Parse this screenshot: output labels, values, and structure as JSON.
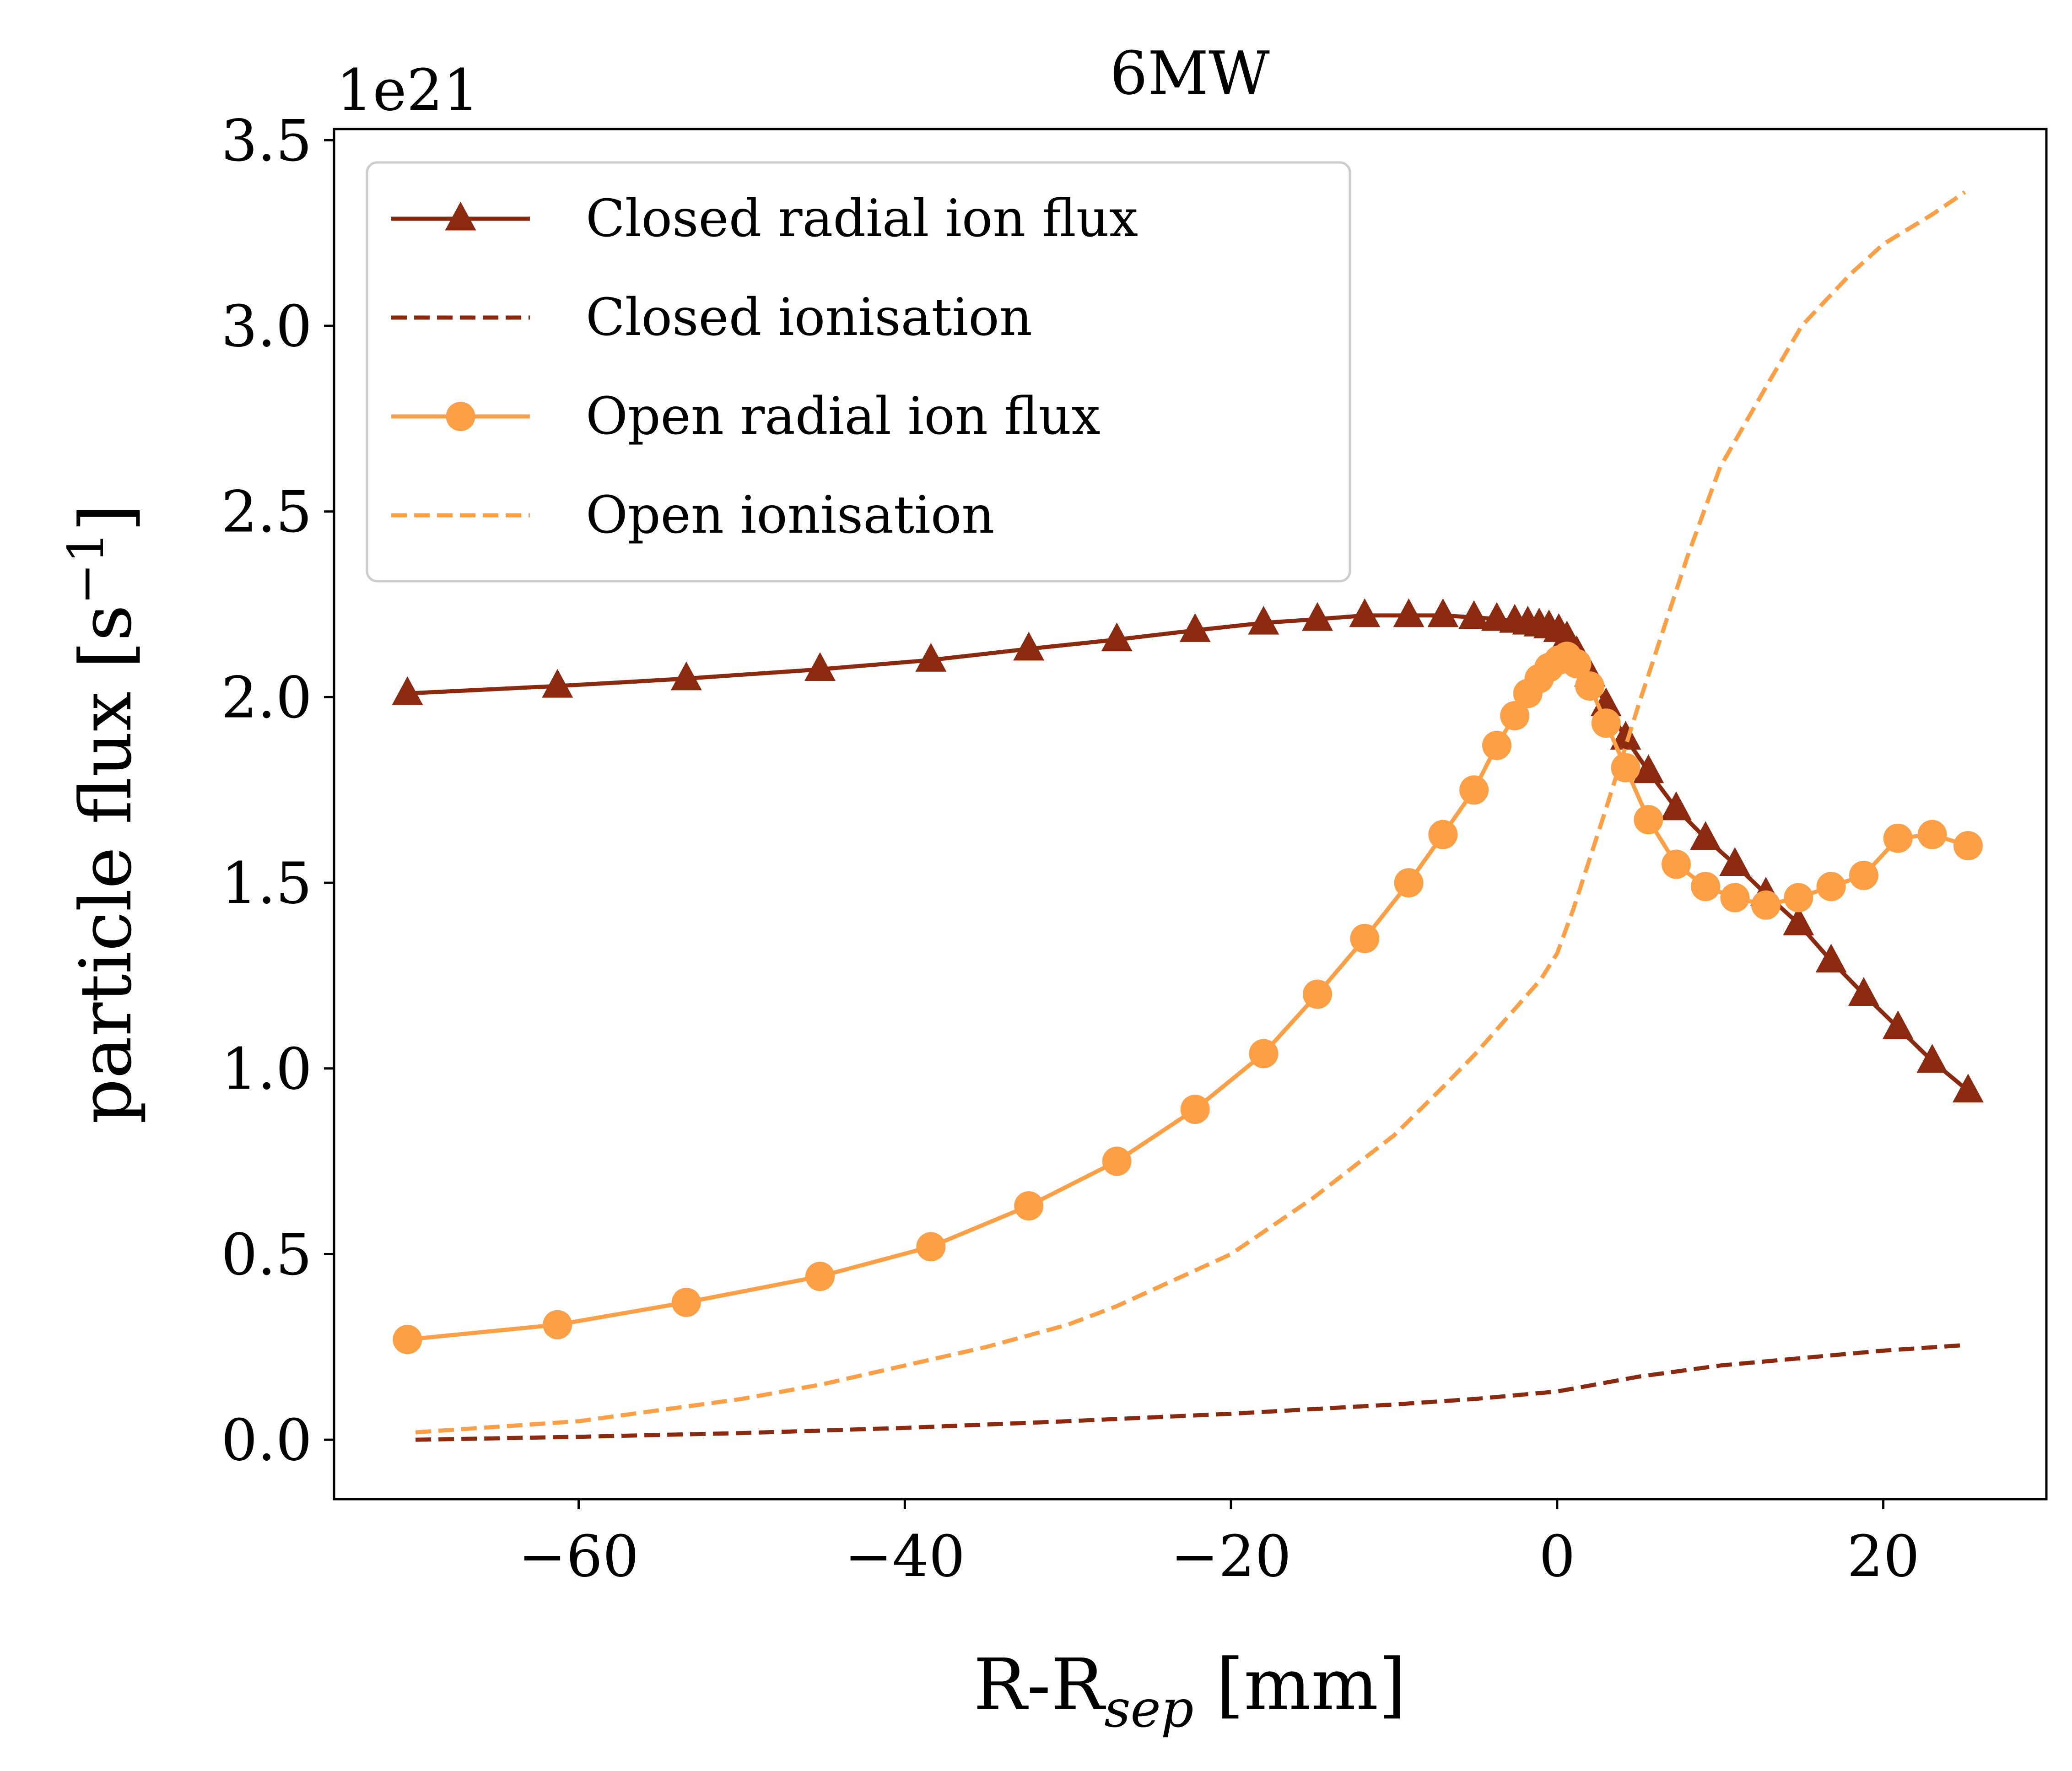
{
  "chart_data": {
    "type": "line",
    "title": "6MW",
    "xlabel": "R-R",
    "xlabel_sub": "sep",
    "xlabel_unit": " [mm]",
    "ylabel": "particle flux [s",
    "ylabel_sup": "−1",
    "ylabel_close": "]",
    "y_offset_label": "1e21",
    "xlim": [
      -75,
      30
    ],
    "ylim": [
      -0.16,
      3.53
    ],
    "xticks": [
      -60,
      -40,
      -20,
      0,
      20
    ],
    "xtick_labels": [
      "−60",
      "−40",
      "−20",
      "0",
      "20"
    ],
    "yticks": [
      0.0,
      0.5,
      1.0,
      1.5,
      2.0,
      2.5,
      3.0,
      3.5
    ],
    "ytick_labels": [
      "0.0",
      "0.5",
      "1.0",
      "1.5",
      "2.0",
      "2.5",
      "3.0",
      "3.5"
    ],
    "legend_position": "top-left",
    "grid": false,
    "series": [
      {
        "name": "Closed radial ion flux",
        "color": "#8b2a0e",
        "line": "solid",
        "marker": "triangle",
        "x": [
          -70.5,
          -61.3,
          -53.4,
          -45.2,
          -38.4,
          -32.4,
          -27.0,
          -22.2,
          -18.0,
          -14.7,
          -11.8,
          -9.1,
          -7.0,
          -5.1,
          -3.7,
          -2.6,
          -1.8,
          -1.1,
          -0.5,
          0.1,
          0.6,
          1.2,
          2.0,
          3.0,
          4.2,
          5.6,
          7.3,
          9.1,
          10.9,
          12.8,
          14.8,
          16.8,
          18.8,
          20.9,
          23.0,
          25.2
        ],
        "y": [
          2.01,
          2.03,
          2.05,
          2.075,
          2.1,
          2.13,
          2.155,
          2.18,
          2.2,
          2.21,
          2.22,
          2.22,
          2.22,
          2.215,
          2.21,
          2.205,
          2.2,
          2.195,
          2.19,
          2.18,
          2.16,
          2.12,
          2.06,
          1.98,
          1.89,
          1.8,
          1.7,
          1.62,
          1.55,
          1.47,
          1.39,
          1.29,
          1.2,
          1.11,
          1.02,
          0.94
        ]
      },
      {
        "name": "Closed ionisation",
        "color": "#8b2a0e",
        "line": "dashed",
        "marker": "none",
        "x": [
          -70,
          -60,
          -50,
          -40,
          -30,
          -20,
          -10,
          -5,
          0,
          5,
          10,
          15,
          20,
          25
        ],
        "y": [
          0.0,
          0.008,
          0.018,
          0.032,
          0.05,
          0.07,
          0.095,
          0.11,
          0.13,
          0.17,
          0.2,
          0.22,
          0.24,
          0.255
        ]
      },
      {
        "name": "Open radial ion flux",
        "color": "#fd9f45",
        "line": "solid",
        "marker": "circle",
        "x": [
          -70.5,
          -61.3,
          -53.4,
          -45.2,
          -38.4,
          -32.4,
          -27.0,
          -22.2,
          -18.0,
          -14.7,
          -11.8,
          -9.1,
          -7.0,
          -5.1,
          -3.7,
          -2.6,
          -1.8,
          -1.1,
          -0.5,
          0.1,
          0.6,
          1.2,
          2.0,
          3.0,
          4.2,
          5.6,
          7.3,
          9.1,
          10.9,
          12.8,
          14.8,
          16.8,
          18.8,
          20.9,
          23.0,
          25.2
        ],
        "y": [
          0.27,
          0.31,
          0.37,
          0.44,
          0.52,
          0.63,
          0.75,
          0.89,
          1.04,
          1.2,
          1.35,
          1.5,
          1.63,
          1.75,
          1.87,
          1.95,
          2.01,
          2.05,
          2.08,
          2.1,
          2.11,
          2.09,
          2.03,
          1.93,
          1.81,
          1.67,
          1.55,
          1.49,
          1.46,
          1.44,
          1.46,
          1.49,
          1.52,
          1.62,
          1.63,
          1.6
        ]
      },
      {
        "name": "Open ionisation",
        "color": "#fd9f45",
        "line": "dashed",
        "marker": "none",
        "x": [
          -70,
          -60,
          -55,
          -50,
          -45,
          -40,
          -35,
          -30,
          -27,
          -25,
          -20,
          -15,
          -10,
          -7,
          -5,
          -3,
          -1,
          0,
          1,
          3,
          5,
          8,
          10,
          13,
          15,
          18,
          20,
          23,
          25
        ],
        "y": [
          0.02,
          0.05,
          0.08,
          0.11,
          0.15,
          0.2,
          0.25,
          0.31,
          0.36,
          0.4,
          0.5,
          0.65,
          0.82,
          0.95,
          1.04,
          1.14,
          1.24,
          1.31,
          1.43,
          1.7,
          1.98,
          2.38,
          2.62,
          2.85,
          3.0,
          3.14,
          3.22,
          3.3,
          3.36
        ]
      }
    ]
  }
}
